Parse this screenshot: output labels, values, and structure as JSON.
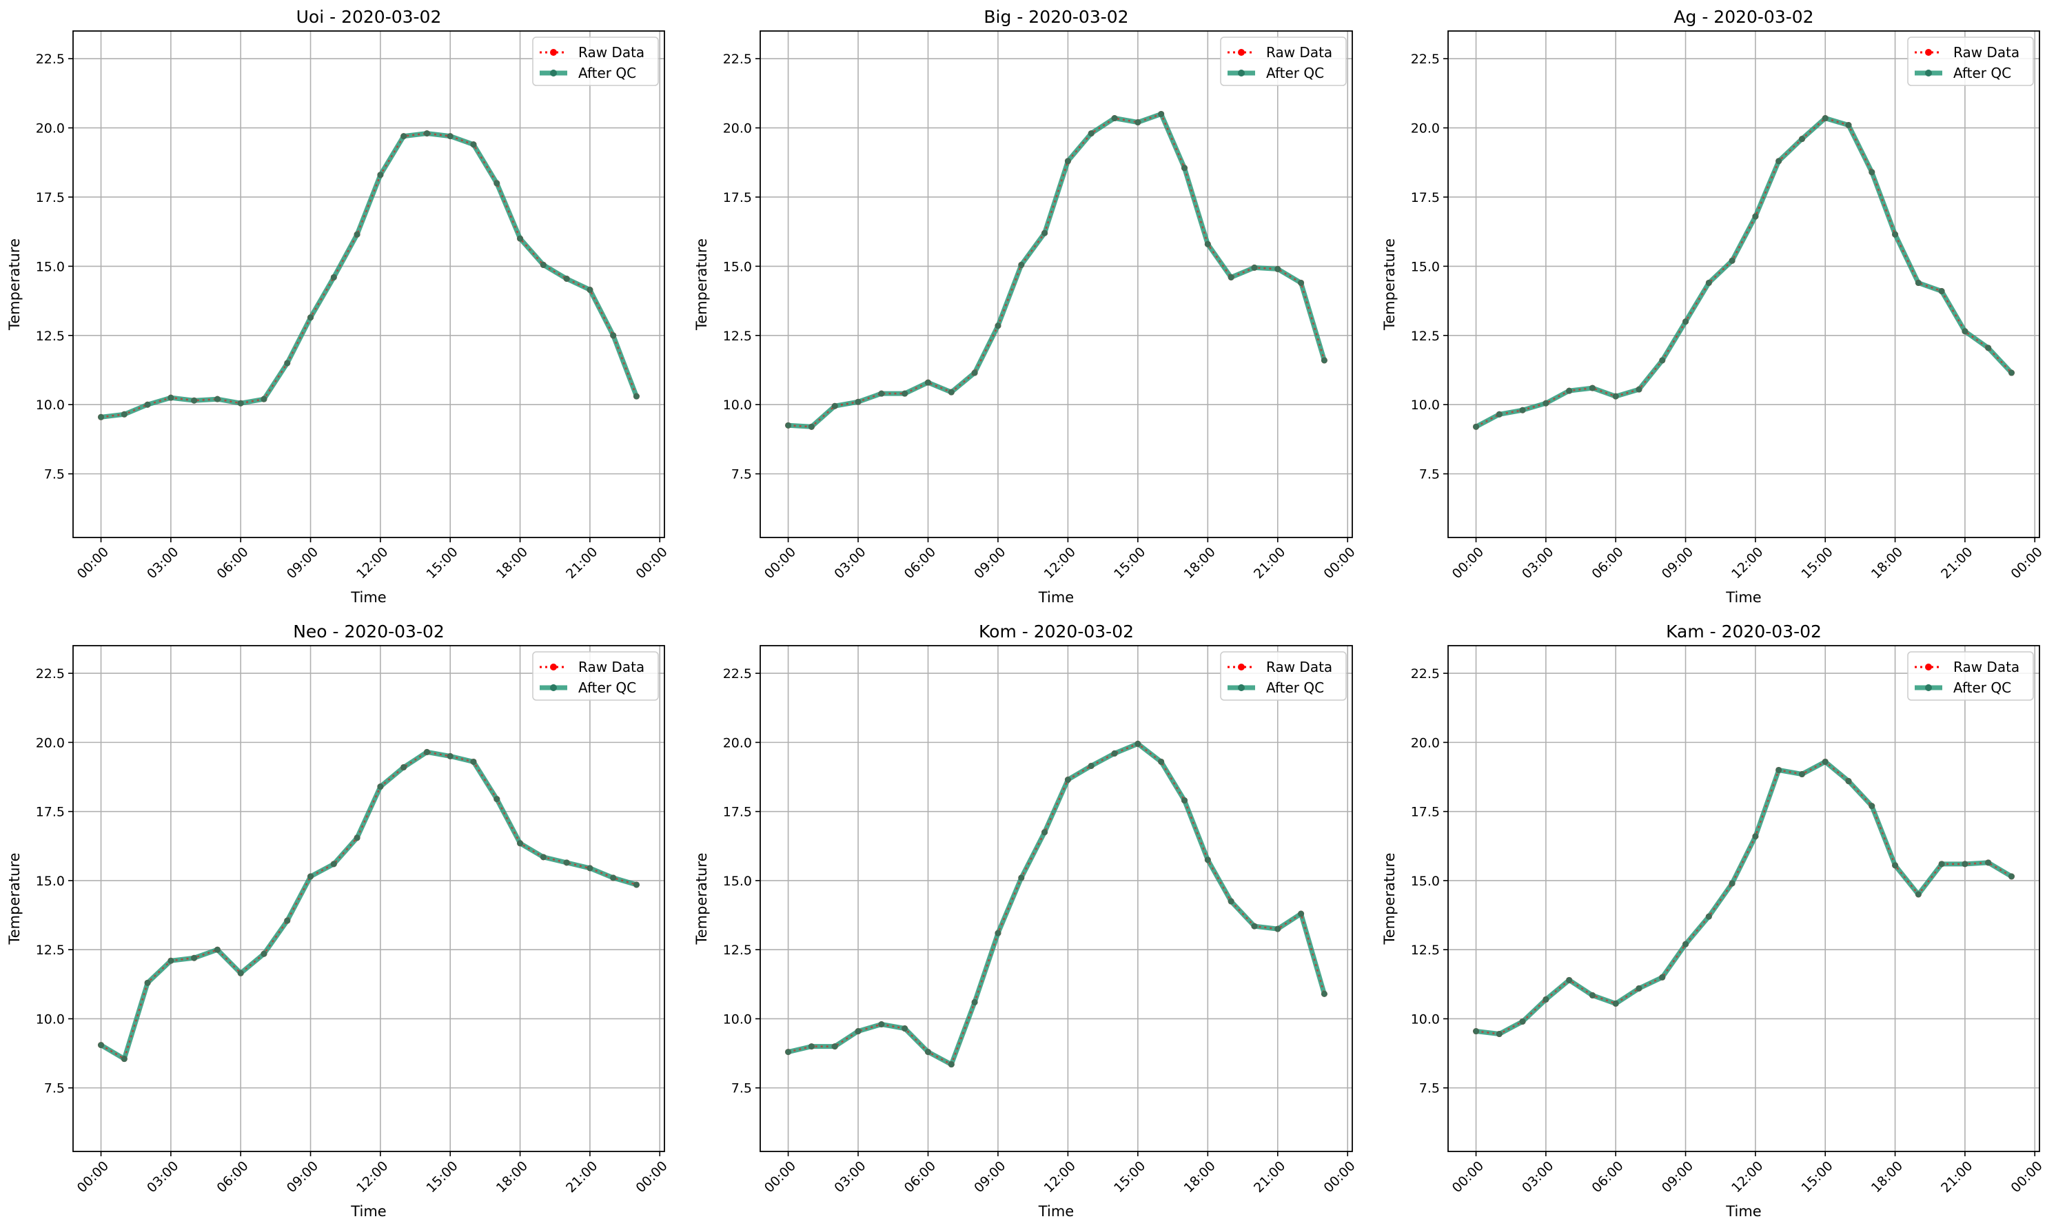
{
  "colors": {
    "raw": "#ff0000",
    "qc": "#2a9a7a",
    "grid": "#b0b0b0",
    "axes": "#000000"
  },
  "chart_data": [
    {
      "type": "line",
      "title": "Uoi - 2020-03-02",
      "xlabel": "Time",
      "ylabel": "Temperature",
      "x_ticks": [
        "00:00",
        "03:00",
        "06:00",
        "09:00",
        "12:00",
        "15:00",
        "18:00",
        "21:00",
        "00:00"
      ],
      "y_ticks": [
        "7.5",
        "10.0",
        "12.5",
        "15.0",
        "17.5",
        "20.0",
        "22.5"
      ],
      "xlim_hours": [
        -1.2,
        24.2
      ],
      "ylim": [
        5.2,
        23.5
      ],
      "grid": true,
      "legend": "top-right",
      "x_hours": [
        0,
        1,
        2,
        3,
        4,
        5,
        6,
        7,
        8,
        9,
        10,
        11,
        12,
        13,
        14,
        15,
        16,
        17,
        18,
        19,
        20,
        21,
        22,
        23
      ],
      "series": [
        {
          "name": "Raw Data",
          "values": [
            9.55,
            9.65,
            10.0,
            10.25,
            10.15,
            10.2,
            10.05,
            10.2,
            11.5,
            13.15,
            14.6,
            16.15,
            18.3,
            19.7,
            19.8,
            19.7,
            19.4,
            18.0,
            16.0,
            15.05,
            14.55,
            14.15,
            12.5,
            10.3
          ]
        },
        {
          "name": "After QC",
          "values": [
            9.55,
            9.65,
            10.0,
            10.25,
            10.15,
            10.2,
            10.05,
            10.2,
            11.5,
            13.15,
            14.6,
            16.15,
            18.3,
            19.7,
            19.8,
            19.7,
            19.4,
            18.0,
            16.0,
            15.05,
            14.55,
            14.15,
            12.5,
            10.3
          ]
        }
      ]
    },
    {
      "type": "line",
      "title": "Big - 2020-03-02",
      "xlabel": "Time",
      "ylabel": "Temperature",
      "x_ticks": [
        "00:00",
        "03:00",
        "06:00",
        "09:00",
        "12:00",
        "15:00",
        "18:00",
        "21:00",
        "00:00"
      ],
      "y_ticks": [
        "7.5",
        "10.0",
        "12.5",
        "15.0",
        "17.5",
        "20.0",
        "22.5"
      ],
      "xlim_hours": [
        -1.2,
        24.2
      ],
      "ylim": [
        5.2,
        23.5
      ],
      "grid": true,
      "legend": "top-right",
      "x_hours": [
        0,
        1,
        2,
        3,
        4,
        5,
        6,
        7,
        8,
        9,
        10,
        11,
        12,
        13,
        14,
        15,
        16,
        17,
        18,
        19,
        20,
        21,
        22,
        23
      ],
      "series": [
        {
          "name": "Raw Data",
          "values": [
            9.25,
            9.2,
            9.95,
            10.1,
            10.4,
            10.4,
            10.8,
            10.45,
            11.15,
            12.85,
            15.05,
            16.2,
            18.8,
            19.8,
            20.35,
            20.2,
            20.5,
            18.55,
            15.8,
            14.6,
            14.95,
            14.9,
            14.4,
            11.6
          ]
        },
        {
          "name": "After QC",
          "values": [
            9.25,
            9.2,
            9.95,
            10.1,
            10.4,
            10.4,
            10.8,
            10.45,
            11.15,
            12.85,
            15.05,
            16.2,
            18.8,
            19.8,
            20.35,
            20.2,
            20.5,
            18.55,
            15.8,
            14.6,
            14.95,
            14.9,
            14.4,
            11.6
          ]
        }
      ]
    },
    {
      "type": "line",
      "title": "Ag - 2020-03-02",
      "xlabel": "Time",
      "ylabel": "Temperature",
      "x_ticks": [
        "00:00",
        "03:00",
        "06:00",
        "09:00",
        "12:00",
        "15:00",
        "18:00",
        "21:00",
        "00:00"
      ],
      "y_ticks": [
        "7.5",
        "10.0",
        "12.5",
        "15.0",
        "17.5",
        "20.0",
        "22.5"
      ],
      "xlim_hours": [
        -1.2,
        24.2
      ],
      "ylim": [
        5.2,
        23.5
      ],
      "grid": true,
      "legend": "top-right",
      "x_hours": [
        0,
        1,
        2,
        3,
        4,
        5,
        6,
        7,
        8,
        9,
        10,
        11,
        12,
        13,
        14,
        15,
        16,
        17,
        18,
        19,
        20,
        21,
        22,
        23
      ],
      "series": [
        {
          "name": "Raw Data",
          "values": [
            9.2,
            9.65,
            9.8,
            10.05,
            10.5,
            10.6,
            10.3,
            10.55,
            11.6,
            13.0,
            14.4,
            15.2,
            16.8,
            18.8,
            19.6,
            20.35,
            20.1,
            18.4,
            16.15,
            14.4,
            14.1,
            12.65,
            12.05,
            11.15
          ]
        },
        {
          "name": "After QC",
          "values": [
            9.2,
            9.65,
            9.8,
            10.05,
            10.5,
            10.6,
            10.3,
            10.55,
            11.6,
            13.0,
            14.4,
            15.2,
            16.8,
            18.8,
            19.6,
            20.35,
            20.1,
            18.4,
            16.15,
            14.4,
            14.1,
            12.65,
            12.05,
            11.15
          ]
        }
      ]
    },
    {
      "type": "line",
      "title": "Neo - 2020-03-02",
      "xlabel": "Time",
      "ylabel": "Temperature",
      "x_ticks": [
        "00:00",
        "03:00",
        "06:00",
        "09:00",
        "12:00",
        "15:00",
        "18:00",
        "21:00",
        "00:00"
      ],
      "y_ticks": [
        "7.5",
        "10.0",
        "12.5",
        "15.0",
        "17.5",
        "20.0",
        "22.5"
      ],
      "xlim_hours": [
        -1.2,
        24.2
      ],
      "ylim": [
        5.2,
        23.5
      ],
      "grid": true,
      "legend": "top-right",
      "x_hours": [
        0,
        1,
        2,
        3,
        4,
        5,
        6,
        7,
        8,
        9,
        10,
        11,
        12,
        13,
        14,
        15,
        16,
        17,
        18,
        19,
        20,
        21,
        22,
        23
      ],
      "series": [
        {
          "name": "Raw Data",
          "values": [
            9.05,
            8.55,
            11.3,
            12.1,
            12.2,
            12.5,
            11.65,
            12.35,
            13.55,
            15.15,
            15.6,
            16.55,
            18.4,
            19.1,
            19.65,
            19.5,
            19.3,
            17.95,
            16.35,
            15.85,
            15.65,
            15.45,
            15.1,
            14.85
          ]
        },
        {
          "name": "After QC",
          "values": [
            9.05,
            8.55,
            11.3,
            12.1,
            12.2,
            12.5,
            11.65,
            12.35,
            13.55,
            15.15,
            15.6,
            16.55,
            18.4,
            19.1,
            19.65,
            19.5,
            19.3,
            17.95,
            16.35,
            15.85,
            15.65,
            15.45,
            15.1,
            14.85
          ]
        }
      ]
    },
    {
      "type": "line",
      "title": "Kom - 2020-03-02",
      "xlabel": "Time",
      "ylabel": "Temperature",
      "x_ticks": [
        "00:00",
        "03:00",
        "06:00",
        "09:00",
        "12:00",
        "15:00",
        "18:00",
        "21:00",
        "00:00"
      ],
      "y_ticks": [
        "7.5",
        "10.0",
        "12.5",
        "15.0",
        "17.5",
        "20.0",
        "22.5"
      ],
      "xlim_hours": [
        -1.2,
        24.2
      ],
      "ylim": [
        5.2,
        23.5
      ],
      "grid": true,
      "legend": "top-right",
      "x_hours": [
        0,
        1,
        2,
        3,
        4,
        5,
        6,
        7,
        8,
        9,
        10,
        11,
        12,
        13,
        14,
        15,
        16,
        17,
        18,
        19,
        20,
        21,
        22,
        23
      ],
      "series": [
        {
          "name": "Raw Data",
          "values": [
            8.8,
            9.0,
            9.0,
            9.55,
            9.8,
            9.65,
            8.8,
            8.35,
            10.6,
            13.1,
            15.1,
            16.75,
            18.65,
            19.15,
            19.6,
            19.95,
            19.3,
            17.9,
            15.75,
            14.25,
            13.35,
            13.25,
            13.8,
            10.9
          ]
        },
        {
          "name": "After QC",
          "values": [
            8.8,
            9.0,
            9.0,
            9.55,
            9.8,
            9.65,
            8.8,
            8.35,
            10.6,
            13.1,
            15.1,
            16.75,
            18.65,
            19.15,
            19.6,
            19.95,
            19.3,
            17.9,
            15.75,
            14.25,
            13.35,
            13.25,
            13.8,
            10.9
          ]
        }
      ]
    },
    {
      "type": "line",
      "title": "Kam - 2020-03-02",
      "xlabel": "Time",
      "ylabel": "Temperature",
      "x_ticks": [
        "00:00",
        "03:00",
        "06:00",
        "09:00",
        "12:00",
        "15:00",
        "18:00",
        "21:00",
        "00:00"
      ],
      "y_ticks": [
        "7.5",
        "10.0",
        "12.5",
        "15.0",
        "17.5",
        "20.0",
        "22.5"
      ],
      "xlim_hours": [
        -1.2,
        24.2
      ],
      "ylim": [
        5.2,
        23.5
      ],
      "grid": true,
      "legend": "top-right",
      "x_hours": [
        0,
        1,
        2,
        3,
        4,
        5,
        6,
        7,
        8,
        9,
        10,
        11,
        12,
        13,
        14,
        15,
        16,
        17,
        18,
        19,
        20,
        21,
        22,
        23
      ],
      "series": [
        {
          "name": "Raw Data",
          "values": [
            9.55,
            9.45,
            9.9,
            10.7,
            11.4,
            10.85,
            10.55,
            11.1,
            11.5,
            12.7,
            13.7,
            14.9,
            16.6,
            19.0,
            18.85,
            19.3,
            18.6,
            17.7,
            15.55,
            14.5,
            15.6,
            15.6,
            15.65,
            15.15
          ]
        },
        {
          "name": "After QC",
          "values": [
            9.55,
            9.45,
            9.9,
            10.7,
            11.4,
            10.85,
            10.55,
            11.1,
            11.5,
            12.7,
            13.7,
            14.9,
            16.6,
            19.0,
            18.85,
            19.3,
            18.6,
            17.7,
            15.55,
            14.5,
            15.6,
            15.6,
            15.65,
            15.15
          ]
        }
      ]
    }
  ]
}
